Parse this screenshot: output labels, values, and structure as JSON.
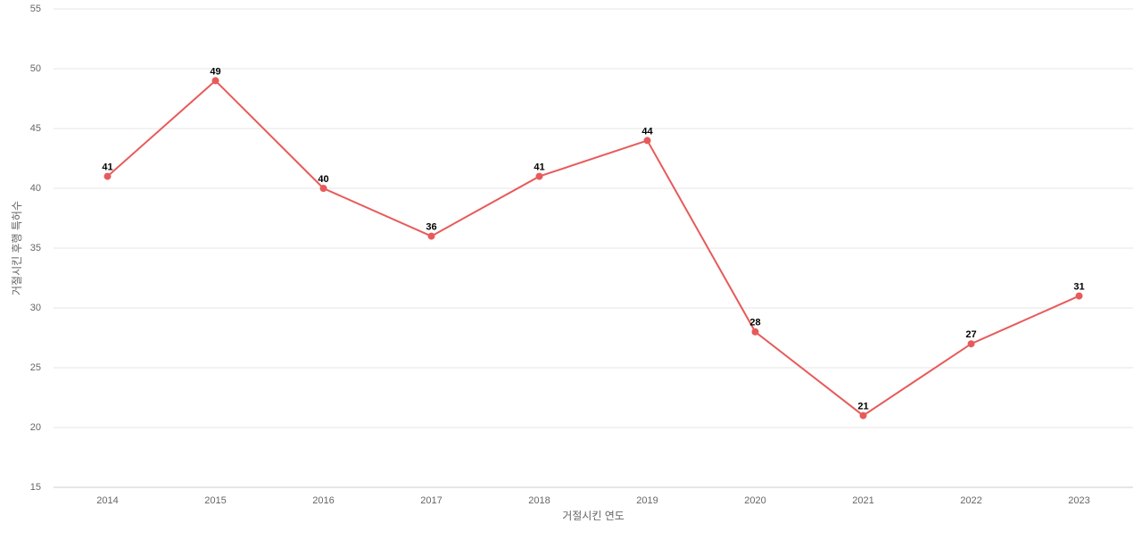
{
  "chart_data": {
    "type": "line",
    "categories": [
      "2014",
      "2015",
      "2016",
      "2017",
      "2018",
      "2019",
      "2020",
      "2021",
      "2022",
      "2023"
    ],
    "series": [
      {
        "name": "거절시킨 후행 특허수",
        "color": "#e85a5a",
        "values": [
          41,
          49,
          40,
          36,
          41,
          44,
          28,
          21,
          27,
          31
        ]
      }
    ],
    "ylim": [
      15,
      55
    ],
    "yticks": [
      15,
      20,
      25,
      30,
      35,
      40,
      45,
      50,
      55
    ],
    "grid": true,
    "xlabel": "거절시킨 연도",
    "ylabel": "거절시킨 후행 특허수"
  }
}
